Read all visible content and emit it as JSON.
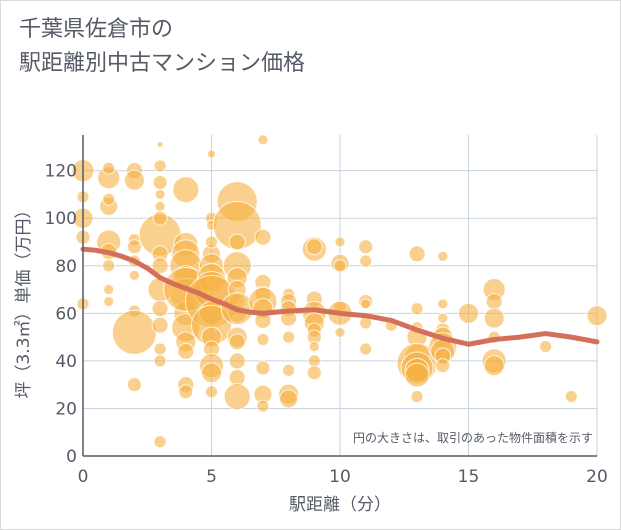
{
  "chart_data": {
    "type": "scatter",
    "title": [
      "千葉県佐倉市の",
      "駅距離別中古マンション価格"
    ],
    "xlabel": "駅距離（分）",
    "ylabel": "坪（3.3㎡）単価（万円）",
    "xlim": [
      0,
      20
    ],
    "ylim": [
      0,
      135
    ],
    "xticks": [
      0,
      5,
      10,
      15,
      20
    ],
    "yticks": [
      0,
      20,
      40,
      60,
      80,
      100,
      120
    ],
    "grid": true,
    "annotation": "円の大きさは、取引のあった物件面積を示す",
    "colors": {
      "bubble": "#f5b041",
      "trend": "#d4705a",
      "grid": "#c8d2dc",
      "axis": "#555b66"
    },
    "points": [
      [
        0,
        120,
        11
      ],
      [
        0,
        100,
        10
      ],
      [
        0,
        109,
        6
      ],
      [
        0,
        64,
        6
      ],
      [
        0,
        92,
        7
      ],
      [
        1,
        117,
        11
      ],
      [
        1,
        105,
        9
      ],
      [
        1,
        90,
        12
      ],
      [
        1,
        86,
        8
      ],
      [
        1,
        80,
        6
      ],
      [
        1,
        70,
        5
      ],
      [
        1,
        65,
        5
      ],
      [
        1,
        121,
        6
      ],
      [
        1,
        108,
        6
      ],
      [
        2,
        120,
        8
      ],
      [
        2,
        116,
        10
      ],
      [
        2,
        91,
        6
      ],
      [
        2,
        88,
        7
      ],
      [
        2,
        82,
        6
      ],
      [
        2,
        61,
        6
      ],
      [
        2,
        52,
        22
      ],
      [
        2,
        30,
        7
      ],
      [
        2,
        76,
        5
      ],
      [
        3,
        93,
        21
      ],
      [
        3,
        115,
        7
      ],
      [
        3,
        105,
        5
      ],
      [
        3,
        100,
        7
      ],
      [
        3,
        85,
        8
      ],
      [
        3,
        80,
        8
      ],
      [
        3,
        70,
        12
      ],
      [
        3,
        62,
        8
      ],
      [
        3,
        55,
        8
      ],
      [
        3,
        45,
        6
      ],
      [
        3,
        40,
        6
      ],
      [
        3,
        122,
        6
      ],
      [
        3,
        6,
        6
      ],
      [
        3,
        131,
        3
      ],
      [
        3,
        110,
        5
      ],
      [
        4,
        112,
        13
      ],
      [
        4,
        89,
        12
      ],
      [
        4,
        85,
        14
      ],
      [
        4,
        80,
        16
      ],
      [
        4,
        75,
        12
      ],
      [
        4,
        68,
        16
      ],
      [
        4,
        60,
        12
      ],
      [
        4,
        54,
        14
      ],
      [
        4,
        48,
        10
      ],
      [
        4,
        44,
        8
      ],
      [
        4,
        30,
        8
      ],
      [
        4,
        27,
        7
      ],
      [
        4,
        70,
        22
      ],
      [
        5,
        85,
        9
      ],
      [
        5,
        80,
        12
      ],
      [
        5,
        75,
        14
      ],
      [
        5,
        70,
        18
      ],
      [
        5,
        65,
        26
      ],
      [
        5,
        60,
        12
      ],
      [
        5,
        55,
        20
      ],
      [
        5,
        50,
        10
      ],
      [
        5,
        45,
        8
      ],
      [
        5,
        38,
        12
      ],
      [
        5,
        35,
        10
      ],
      [
        5,
        27,
        6
      ],
      [
        5,
        127,
        4
      ],
      [
        5,
        100,
        6
      ],
      [
        5,
        97,
        5
      ],
      [
        5,
        90,
        6
      ],
      [
        6,
        107,
        20
      ],
      [
        6,
        97,
        24
      ],
      [
        6,
        90,
        8
      ],
      [
        6,
        80,
        14
      ],
      [
        6,
        75,
        10
      ],
      [
        6,
        70,
        9
      ],
      [
        6,
        65,
        8
      ],
      [
        6,
        60,
        9
      ],
      [
        6,
        50,
        10
      ],
      [
        6,
        48,
        8
      ],
      [
        6,
        40,
        8
      ],
      [
        6,
        33,
        8
      ],
      [
        6,
        25,
        13
      ],
      [
        6,
        62,
        16
      ],
      [
        7,
        133,
        5
      ],
      [
        7,
        92,
        8
      ],
      [
        7,
        73,
        8
      ],
      [
        7,
        68,
        8
      ],
      [
        7,
        65,
        14
      ],
      [
        7,
        62,
        10
      ],
      [
        7,
        57,
        8
      ],
      [
        7,
        49,
        6
      ],
      [
        7,
        37,
        7
      ],
      [
        7,
        26,
        9
      ],
      [
        7,
        21,
        6
      ],
      [
        8,
        68,
        6
      ],
      [
        8,
        65,
        8
      ],
      [
        8,
        62,
        8
      ],
      [
        8,
        58,
        8
      ],
      [
        8,
        50,
        6
      ],
      [
        8,
        36,
        6
      ],
      [
        8,
        26,
        10
      ],
      [
        8,
        24,
        9
      ],
      [
        9,
        87,
        12
      ],
      [
        9,
        88,
        8
      ],
      [
        9,
        66,
        8
      ],
      [
        9,
        60,
        12
      ],
      [
        9,
        56,
        10
      ],
      [
        9,
        53,
        7
      ],
      [
        9,
        50,
        7
      ],
      [
        9,
        46,
        5
      ],
      [
        9,
        40,
        6
      ],
      [
        9,
        35,
        7
      ],
      [
        10,
        90,
        5
      ],
      [
        10,
        81,
        9
      ],
      [
        10,
        80,
        6
      ],
      [
        10,
        63,
        6
      ],
      [
        10,
        60,
        12
      ],
      [
        10,
        52,
        5
      ],
      [
        11,
        88,
        7
      ],
      [
        11,
        82,
        6
      ],
      [
        11,
        65,
        7
      ],
      [
        11,
        56,
        6
      ],
      [
        11,
        45,
        6
      ],
      [
        11,
        64,
        5
      ],
      [
        12,
        55,
        6
      ],
      [
        13,
        85,
        8
      ],
      [
        13,
        62,
        6
      ],
      [
        13,
        54,
        6
      ],
      [
        13,
        50,
        10
      ],
      [
        13,
        42,
        12
      ],
      [
        13,
        39,
        20
      ],
      [
        13,
        37,
        16
      ],
      [
        13,
        36,
        12
      ],
      [
        13,
        34,
        12
      ],
      [
        13,
        25,
        6
      ],
      [
        14,
        84,
        5
      ],
      [
        14,
        64,
        5
      ],
      [
        14,
        58,
        5
      ],
      [
        14,
        53,
        7
      ],
      [
        14,
        50,
        10
      ],
      [
        14,
        46,
        14
      ],
      [
        14,
        44,
        12
      ],
      [
        14,
        42,
        8
      ],
      [
        14,
        38,
        7
      ],
      [
        15,
        60,
        10
      ],
      [
        16,
        70,
        11
      ],
      [
        16,
        65,
        8
      ],
      [
        16,
        58,
        10
      ],
      [
        16,
        50,
        6
      ],
      [
        16,
        40,
        12
      ],
      [
        16,
        38,
        10
      ],
      [
        18,
        46,
        6
      ],
      [
        19,
        25,
        6
      ],
      [
        20,
        59,
        10
      ]
    ],
    "trend": {
      "x": [
        0,
        0.5,
        1,
        1.5,
        2,
        2.5,
        3,
        3.5,
        4,
        4.5,
        5,
        5.5,
        6,
        6.5,
        7,
        7.5,
        8,
        9,
        10,
        11,
        12,
        13,
        14,
        15,
        16,
        17,
        18,
        19,
        20
      ],
      "y": [
        87,
        86.5,
        85.5,
        84,
        82,
        79,
        75,
        72.5,
        70.5,
        68.5,
        66,
        64,
        61.5,
        60.5,
        60,
        60.5,
        61,
        61.5,
        60,
        59,
        57,
        53,
        49.5,
        47,
        49,
        50,
        51.5,
        50,
        48
      ]
    }
  }
}
